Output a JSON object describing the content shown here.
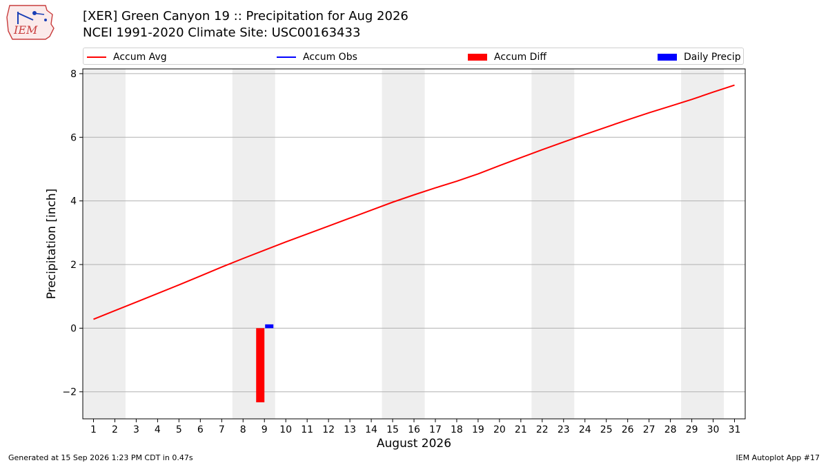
{
  "header": {
    "title_line1": "[XER] Green Canyon 19 :: Precipitation for Aug 2026",
    "title_line2": "NCEI 1991-2020 Climate Site: USC00163433"
  },
  "logo": {
    "text": "IEM"
  },
  "legend": {
    "items": [
      {
        "label": "Accum Avg",
        "color": "#ff0000",
        "kind": "line"
      },
      {
        "label": "Accum Obs",
        "color": "#0000ff",
        "kind": "line"
      },
      {
        "label": "Accum Diff",
        "color": "#ff0000",
        "kind": "box"
      },
      {
        "label": "Daily Precip",
        "color": "#0000ff",
        "kind": "box"
      }
    ]
  },
  "footer": {
    "left": "Generated at 15 Sep 2026 1:23 PM CDT in 0.47s",
    "right": "IEM Autoplot App #17"
  },
  "chart_data": {
    "type": "line",
    "title": "[XER] Green Canyon 19 :: Precipitation for Aug 2026",
    "subtitle": "NCEI 1991-2020 Climate Site: USC00163433",
    "xlabel": "August 2026",
    "ylabel": "Precipitation [inch]",
    "xlim": [
      0.5,
      31.5
    ],
    "ylim": [
      -2.85,
      8.15
    ],
    "yticks": [
      -2,
      0,
      2,
      4,
      6,
      8
    ],
    "ytick_labels": [
      "−2",
      "0",
      "2",
      "4",
      "6",
      "8"
    ],
    "x": [
      1,
      2,
      3,
      4,
      5,
      6,
      7,
      8,
      9,
      10,
      11,
      12,
      13,
      14,
      15,
      16,
      17,
      18,
      19,
      20,
      21,
      22,
      23,
      24,
      25,
      26,
      27,
      28,
      29,
      30,
      31
    ],
    "grid": "horizontal",
    "weekend_shading": [
      [
        0.5,
        2.5
      ],
      [
        7.5,
        9.5
      ],
      [
        14.5,
        16.5
      ],
      [
        21.5,
        23.5
      ],
      [
        28.5,
        30.5
      ]
    ],
    "series": [
      {
        "name": "Accum Avg",
        "type": "line",
        "color": "#ff0000",
        "values": [
          0.28,
          0.55,
          0.82,
          1.09,
          1.36,
          1.64,
          1.92,
          2.19,
          2.45,
          2.71,
          2.96,
          3.21,
          3.46,
          3.71,
          3.96,
          4.19,
          4.41,
          4.62,
          4.85,
          5.11,
          5.36,
          5.61,
          5.85,
          6.09,
          6.32,
          6.55,
          6.77,
          6.98,
          7.19,
          7.42,
          7.64
        ]
      },
      {
        "name": "Accum Diff",
        "type": "bar",
        "color": "#ff0000",
        "points": [
          {
            "x": 9,
            "y": -2.33
          }
        ]
      },
      {
        "name": "Daily Precip",
        "type": "bar",
        "color": "#0000ff",
        "points": [
          {
            "x": 9,
            "y": 0.12
          }
        ]
      }
    ]
  }
}
